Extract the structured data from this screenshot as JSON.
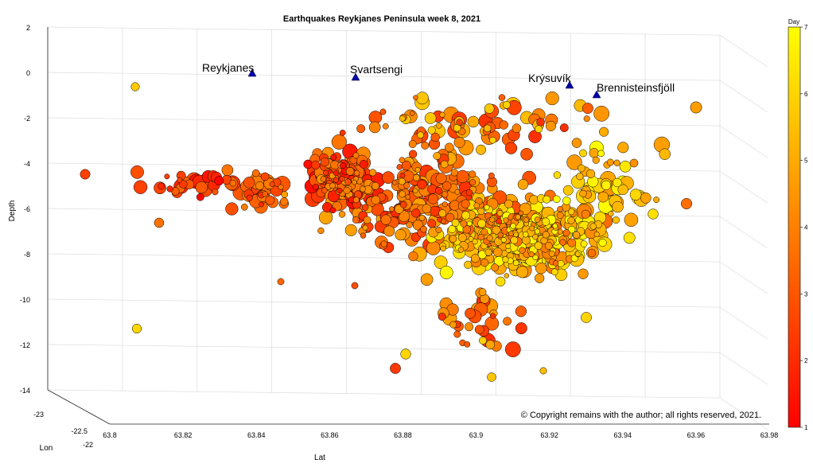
{
  "chart_data": {
    "type": "scatter",
    "title": "Earthquakes Reykjanes Peninsula week 8, 2021",
    "zlabel": "Depth",
    "xlabel": "Lat",
    "ylabel": "Lon",
    "colorbar_label": "Day",
    "z_ticks": [
      "2",
      "0",
      "-2",
      "-4",
      "-6",
      "-8",
      "-10",
      "-12",
      "-14"
    ],
    "x_ticks": [
      "63.8",
      "63.82",
      "63.84",
      "63.86",
      "63.88",
      "63.9",
      "63.92",
      "63.94",
      "63.96",
      "63.98"
    ],
    "y_ticks": [
      "-23",
      "-22.5",
      "-22"
    ],
    "colorbar_ticks": [
      "1",
      "2",
      "3",
      "4",
      "5",
      "6",
      "7"
    ],
    "zlim": [
      -14,
      2
    ],
    "xlim": [
      63.8,
      63.98
    ],
    "day_range": [
      1,
      7
    ],
    "colormap": [
      "#ff0000",
      "#ff8000",
      "#ffff00"
    ],
    "grid": true,
    "marker_edge": "#000000",
    "stations": [
      {
        "name": "Reykjanes",
        "lat": 63.839,
        "depth": -0.05
      },
      {
        "name": "Svartsengi",
        "lat": 63.867,
        "depth": -0.2
      },
      {
        "name": "Krýsuvík",
        "lat": 63.925,
        "depth": -0.7
      },
      {
        "name": "Brennisteinsfjöll",
        "lat": 63.932,
        "depth": -1.2
      }
    ],
    "station_color": "#0000aa",
    "copyright": "© Copyright remains with the author; all rights reserved, 2021."
  }
}
